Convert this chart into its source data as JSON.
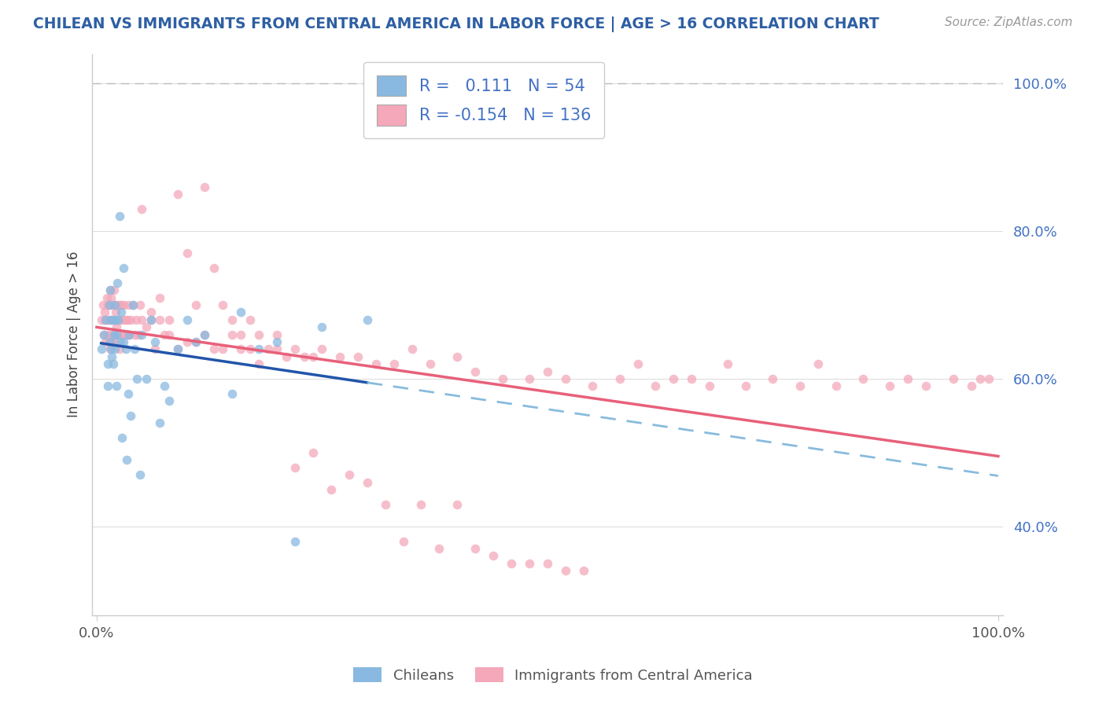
{
  "title": "CHILEAN VS IMMIGRANTS FROM CENTRAL AMERICA IN LABOR FORCE | AGE > 16 CORRELATION CHART",
  "source": "Source: ZipAtlas.com",
  "ylabel": "In Labor Force | Age > 16",
  "blue_R": 0.111,
  "blue_N": 54,
  "pink_R": -0.154,
  "pink_N": 136,
  "blue_color": "#89b9e0",
  "pink_color": "#f4a8ba",
  "blue_line_color": "#2255aa",
  "blue_dash_color": "#88bbdd",
  "pink_line_color": "#e8607a",
  "blue_text_color": "#4472c4",
  "title_color": "#2e5fa3",
  "source_color": "#999999",
  "background_color": "#ffffff",
  "grid_color": "#dddddd",
  "spine_color": "#cccccc",
  "xlim": [
    -0.005,
    1.005
  ],
  "ylim": [
    0.28,
    1.04
  ],
  "yticks": [
    0.4,
    0.6,
    0.8,
    1.0
  ],
  "ytick_labels": [
    "40.0%",
    "60.0%",
    "80.0%",
    "100.0%"
  ],
  "xticks": [
    0.0,
    1.0
  ],
  "xtick_labels": [
    "0.0%",
    "100.0%"
  ],
  "blue_x": [
    0.005,
    0.008,
    0.01,
    0.012,
    0.012,
    0.014,
    0.015,
    0.015,
    0.016,
    0.016,
    0.017,
    0.018,
    0.018,
    0.019,
    0.02,
    0.02,
    0.021,
    0.022,
    0.022,
    0.023,
    0.024,
    0.025,
    0.026,
    0.027,
    0.028,
    0.03,
    0.03,
    0.032,
    0.033,
    0.035,
    0.036,
    0.038,
    0.04,
    0.042,
    0.045,
    0.048,
    0.05,
    0.055,
    0.06,
    0.065,
    0.07,
    0.075,
    0.08,
    0.09,
    0.1,
    0.11,
    0.12,
    0.15,
    0.16,
    0.18,
    0.2,
    0.22,
    0.25,
    0.3
  ],
  "blue_y": [
    0.64,
    0.66,
    0.68,
    0.62,
    0.59,
    0.7,
    0.72,
    0.65,
    0.68,
    0.64,
    0.63,
    0.68,
    0.62,
    0.66,
    0.7,
    0.64,
    0.68,
    0.66,
    0.59,
    0.73,
    0.68,
    0.82,
    0.65,
    0.69,
    0.52,
    0.75,
    0.65,
    0.64,
    0.49,
    0.58,
    0.66,
    0.55,
    0.7,
    0.64,
    0.6,
    0.47,
    0.66,
    0.6,
    0.68,
    0.65,
    0.54,
    0.59,
    0.57,
    0.64,
    0.68,
    0.65,
    0.66,
    0.58,
    0.69,
    0.64,
    0.65,
    0.38,
    0.67,
    0.68
  ],
  "pink_x": [
    0.005,
    0.007,
    0.008,
    0.009,
    0.01,
    0.01,
    0.011,
    0.012,
    0.012,
    0.013,
    0.014,
    0.014,
    0.015,
    0.015,
    0.015,
    0.016,
    0.016,
    0.017,
    0.017,
    0.018,
    0.019,
    0.019,
    0.02,
    0.02,
    0.021,
    0.022,
    0.023,
    0.024,
    0.025,
    0.025,
    0.026,
    0.027,
    0.028,
    0.029,
    0.03,
    0.031,
    0.032,
    0.033,
    0.034,
    0.035,
    0.036,
    0.038,
    0.04,
    0.042,
    0.044,
    0.046,
    0.048,
    0.05,
    0.055,
    0.06,
    0.065,
    0.07,
    0.075,
    0.08,
    0.09,
    0.1,
    0.11,
    0.12,
    0.13,
    0.14,
    0.15,
    0.16,
    0.17,
    0.18,
    0.19,
    0.2,
    0.21,
    0.22,
    0.23,
    0.24,
    0.25,
    0.27,
    0.29,
    0.31,
    0.33,
    0.35,
    0.37,
    0.4,
    0.42,
    0.45,
    0.48,
    0.5,
    0.52,
    0.55,
    0.58,
    0.6,
    0.62,
    0.64,
    0.66,
    0.68,
    0.7,
    0.72,
    0.75,
    0.78,
    0.8,
    0.82,
    0.85,
    0.88,
    0.9,
    0.92,
    0.95,
    0.97,
    0.98,
    0.99,
    0.05,
    0.06,
    0.07,
    0.08,
    0.09,
    0.1,
    0.11,
    0.12,
    0.13,
    0.14,
    0.15,
    0.16,
    0.17,
    0.18,
    0.2,
    0.22,
    0.24,
    0.26,
    0.28,
    0.3,
    0.32,
    0.34,
    0.36,
    0.38,
    0.4,
    0.42,
    0.44,
    0.46,
    0.48,
    0.5,
    0.52,
    0.54
  ],
  "pink_y": [
    0.68,
    0.7,
    0.66,
    0.69,
    0.68,
    0.65,
    0.71,
    0.7,
    0.66,
    0.68,
    0.7,
    0.65,
    0.72,
    0.68,
    0.64,
    0.71,
    0.66,
    0.7,
    0.65,
    0.68,
    0.72,
    0.66,
    0.7,
    0.65,
    0.69,
    0.67,
    0.7,
    0.66,
    0.7,
    0.64,
    0.68,
    0.7,
    0.66,
    0.68,
    0.7,
    0.66,
    0.68,
    0.66,
    0.68,
    0.7,
    0.66,
    0.68,
    0.7,
    0.66,
    0.68,
    0.66,
    0.7,
    0.68,
    0.67,
    0.68,
    0.64,
    0.68,
    0.66,
    0.68,
    0.64,
    0.65,
    0.65,
    0.66,
    0.64,
    0.64,
    0.66,
    0.64,
    0.64,
    0.62,
    0.64,
    0.64,
    0.63,
    0.64,
    0.63,
    0.63,
    0.64,
    0.63,
    0.63,
    0.62,
    0.62,
    0.64,
    0.62,
    0.63,
    0.61,
    0.6,
    0.6,
    0.61,
    0.6,
    0.59,
    0.6,
    0.62,
    0.59,
    0.6,
    0.6,
    0.59,
    0.62,
    0.59,
    0.6,
    0.59,
    0.62,
    0.59,
    0.6,
    0.59,
    0.6,
    0.59,
    0.6,
    0.59,
    0.6,
    0.6,
    0.83,
    0.69,
    0.71,
    0.66,
    0.85,
    0.77,
    0.7,
    0.86,
    0.75,
    0.7,
    0.68,
    0.66,
    0.68,
    0.66,
    0.66,
    0.48,
    0.5,
    0.45,
    0.47,
    0.46,
    0.43,
    0.38,
    0.43,
    0.37,
    0.43,
    0.37,
    0.36,
    0.35,
    0.35,
    0.35,
    0.34,
    0.34
  ]
}
